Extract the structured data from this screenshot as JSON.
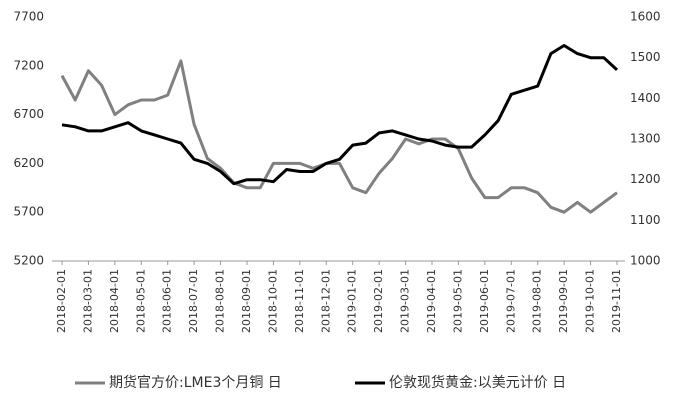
{
  "chart_data": {
    "type": "line",
    "categories": [
      "2018-02-01",
      null,
      "2018-03-01",
      null,
      "2018-04-01",
      null,
      "2018-05-01",
      null,
      "2018-06-01",
      null,
      "2018-07-01",
      null,
      "2018-08-01",
      null,
      "2018-09-01",
      null,
      "2018-10-01",
      null,
      "2018-11-01",
      null,
      "2018-12-01",
      null,
      "2019-01-01",
      null,
      "2019-02-01",
      null,
      "2019-03-01",
      null,
      "2019-04-01",
      null,
      "2019-05-01",
      null,
      "2019-06-01",
      null,
      "2019-07-01",
      null,
      "2019-08-01",
      null,
      "2019-09-01",
      null,
      "2019-10-01",
      null,
      "2019-11-01"
    ],
    "series": [
      {
        "name": "期货官方价:LME3个月铜 日",
        "color": "#808080",
        "axis": "y",
        "values": [
          7100,
          6850,
          7150,
          7000,
          6700,
          6800,
          6850,
          6850,
          6900,
          7250,
          6600,
          6250,
          6150,
          6000,
          5950,
          5950,
          6200,
          6200,
          6200,
          6150,
          6200,
          6200,
          5950,
          5900,
          6100,
          6250,
          6450,
          6400,
          6450,
          6450,
          6350,
          6050,
          5850,
          5850,
          5950,
          5950,
          5900,
          5750,
          5700,
          5800,
          5700,
          5800,
          5900
        ]
      },
      {
        "name": "伦敦现货黄金:以美元计价 日",
        "color": "#000000",
        "axis": "y2",
        "values": [
          1335,
          1330,
          1320,
          1320,
          1330,
          1340,
          1320,
          1310,
          1300,
          1290,
          1250,
          1240,
          1220,
          1190,
          1200,
          1200,
          1195,
          1225,
          1220,
          1220,
          1240,
          1250,
          1285,
          1290,
          1315,
          1320,
          1310,
          1300,
          1295,
          1285,
          1280,
          1280,
          1310,
          1345,
          1410,
          1420,
          1430,
          1510,
          1530,
          1510,
          1500,
          1500,
          1470
        ]
      }
    ],
    "ylim": [
      5200,
      7700
    ],
    "yticks": [
      5200,
      5700,
      6200,
      6700,
      7200,
      7700
    ],
    "y2lim": [
      1000,
      1600
    ],
    "y2ticks": [
      1000,
      1100,
      1200,
      1300,
      1400,
      1500,
      1600
    ],
    "legend": "bottom"
  }
}
